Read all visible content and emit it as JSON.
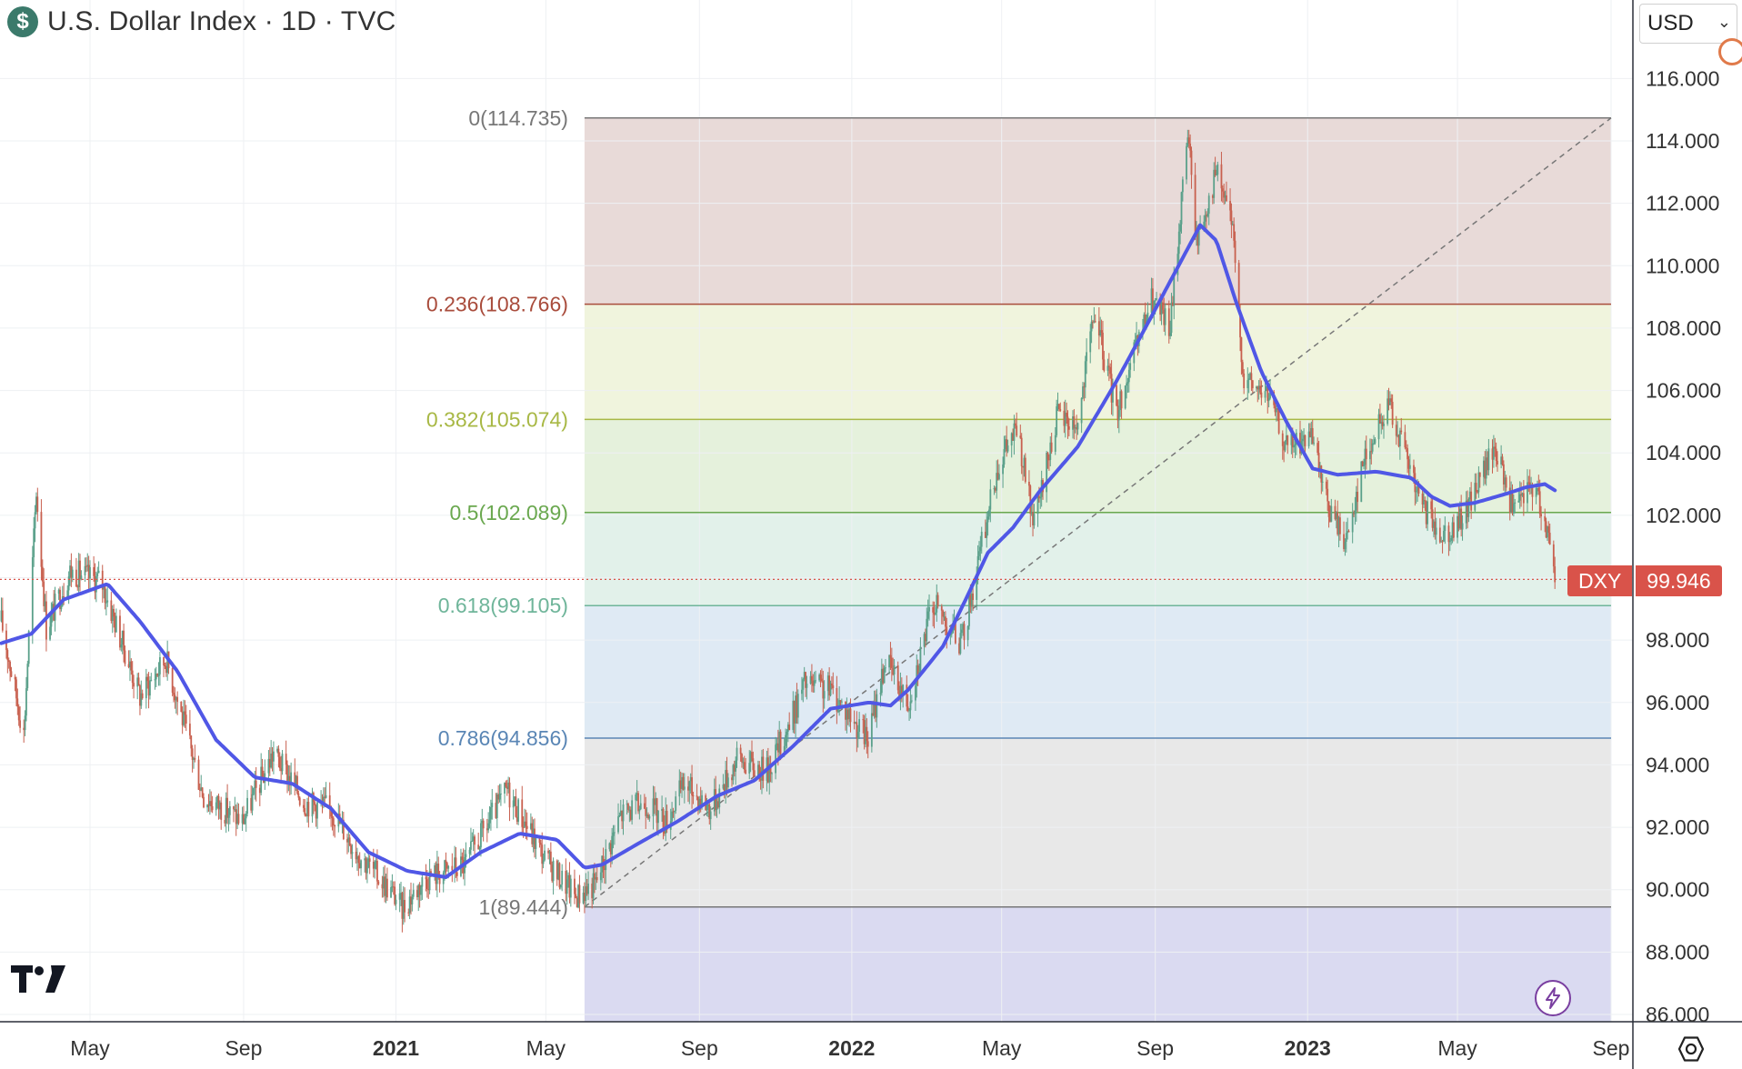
{
  "header": {
    "symbol_icon": "dollar-icon",
    "symbol_glyph": "$",
    "title": "U.S. Dollar Index · 1D · TVC"
  },
  "currency": {
    "label": "USD",
    "chevron": "⌄"
  },
  "price_badge": {
    "symbol": "DXY",
    "price": "99.946",
    "color": "#d9534a"
  },
  "colors": {
    "ma_line": "#5057e6",
    "candle_up": "#5aa08a",
    "candle_down": "#c8604f",
    "last_price_line": "#d9534a"
  },
  "chart_data": {
    "type": "candlestick",
    "title": "U.S. Dollar Index · 1D · TVC",
    "ylim": [
      85.5,
      118.2
    ],
    "y_ticks": [
      "86.000",
      "88.000",
      "90.000",
      "92.000",
      "94.000",
      "96.000",
      "98.000",
      "100.000",
      "102.000",
      "104.000",
      "106.000",
      "108.000",
      "110.000",
      "112.000",
      "114.000",
      "116.000"
    ],
    "y_tick_values": [
      86,
      88,
      90,
      92,
      94,
      96,
      98,
      100,
      102,
      104,
      106,
      108,
      110,
      112,
      114,
      116
    ],
    "x_ticks": [
      {
        "label": "May",
        "date": "2020-05-01",
        "bold": false
      },
      {
        "label": "Sep",
        "date": "2020-09-01",
        "bold": false
      },
      {
        "label": "2021",
        "date": "2021-01-01",
        "bold": true
      },
      {
        "label": "May",
        "date": "2021-05-01",
        "bold": false
      },
      {
        "label": "Sep",
        "date": "2021-09-01",
        "bold": false
      },
      {
        "label": "2022",
        "date": "2022-01-01",
        "bold": true
      },
      {
        "label": "May",
        "date": "2022-05-01",
        "bold": false
      },
      {
        "label": "Sep",
        "date": "2022-09-01",
        "bold": false
      },
      {
        "label": "2023",
        "date": "2023-01-01",
        "bold": true
      },
      {
        "label": "May",
        "date": "2023-05-01",
        "bold": false
      },
      {
        "label": "Sep",
        "date": "2023-09-01",
        "bold": false
      }
    ],
    "x_range": [
      "2020-02-20",
      "2023-09-15"
    ],
    "fibonacci": {
      "start_date": "2021-06-01",
      "end_date": "2023-09-01",
      "levels": [
        {
          "ratio": "0",
          "value": 114.735,
          "label": "0(114.735)",
          "color": "#777777",
          "fill": "#e6d6d4"
        },
        {
          "ratio": "0.236",
          "value": 108.766,
          "label": "0.236(108.766)",
          "color": "#a94c3c",
          "fill": "#eef3d9"
        },
        {
          "ratio": "0.382",
          "value": 105.074,
          "label": "0.382(105.074)",
          "color": "#a8b845",
          "fill": "#e2f0d8"
        },
        {
          "ratio": "0.5",
          "value": 102.089,
          "label": "0.5(102.089)",
          "color": "#6aa84f",
          "fill": "#dff0e8"
        },
        {
          "ratio": "0.618",
          "value": 99.105,
          "label": "0.618(99.105)",
          "color": "#6fb59a",
          "fill": "#dce8f3"
        },
        {
          "ratio": "0.786",
          "value": 94.856,
          "label": "0.786(94.856)",
          "color": "#5a86b5",
          "fill": "#e6e6e6"
        },
        {
          "ratio": "1",
          "value": 89.444,
          "label": "1(89.444)",
          "color": "#777777",
          "fill": "#d6d6ef"
        }
      ],
      "bottom_value": 85.5,
      "trend_line": {
        "from": {
          "date": "2021-06-01",
          "value": 89.444
        },
        "to": {
          "date": "2023-09-01",
          "value": 114.735
        }
      }
    },
    "last_price": 99.946,
    "price_anchors": [
      [
        "2020-02-20",
        98.6
      ],
      [
        "2020-03-09",
        95.0
      ],
      [
        "2020-03-19",
        102.8
      ],
      [
        "2020-03-27",
        98.4
      ],
      [
        "2020-04-15",
        100.2
      ],
      [
        "2020-05-10",
        99.9
      ],
      [
        "2020-06-10",
        96.2
      ],
      [
        "2020-07-01",
        97.4
      ],
      [
        "2020-07-31",
        93.0
      ],
      [
        "2020-08-31",
        92.2
      ],
      [
        "2020-09-25",
        94.4
      ],
      [
        "2020-10-20",
        92.8
      ],
      [
        "2020-11-10",
        92.6
      ],
      [
        "2020-12-01",
        91.2
      ],
      [
        "2020-12-31",
        89.8
      ],
      [
        "2021-01-06",
        89.4
      ],
      [
        "2021-01-25",
        90.4
      ],
      [
        "2021-02-25",
        90.8
      ],
      [
        "2021-03-31",
        93.2
      ],
      [
        "2021-04-30",
        91.0
      ],
      [
        "2021-05-25",
        89.8
      ],
      [
        "2021-06-10",
        90.2
      ],
      [
        "2021-06-30",
        92.4
      ],
      [
        "2021-07-20",
        92.8
      ],
      [
        "2021-08-05",
        92.2
      ],
      [
        "2021-08-20",
        93.4
      ],
      [
        "2021-09-10",
        92.6
      ],
      [
        "2021-10-01",
        94.2
      ],
      [
        "2021-10-25",
        93.8
      ],
      [
        "2021-11-12",
        95.3
      ],
      [
        "2021-11-24",
        96.6
      ],
      [
        "2021-12-15",
        96.4
      ],
      [
        "2022-01-14",
        94.8
      ],
      [
        "2022-01-28",
        97.4
      ],
      [
        "2022-02-15",
        96.0
      ],
      [
        "2022-03-07",
        99.2
      ],
      [
        "2022-03-30",
        97.9
      ],
      [
        "2022-04-28",
        103.6
      ],
      [
        "2022-05-13",
        104.8
      ],
      [
        "2022-05-27",
        101.6
      ],
      [
        "2022-06-14",
        105.2
      ],
      [
        "2022-07-01",
        104.9
      ],
      [
        "2022-07-14",
        108.5
      ],
      [
        "2022-08-01",
        105.3
      ],
      [
        "2022-08-29",
        108.9
      ],
      [
        "2022-09-13",
        108.0
      ],
      [
        "2022-09-27",
        114.4
      ],
      [
        "2022-10-04",
        110.8
      ],
      [
        "2022-10-20",
        113.0
      ],
      [
        "2022-11-01",
        111.5
      ],
      [
        "2022-11-11",
        106.3
      ],
      [
        "2022-11-30",
        105.9
      ],
      [
        "2022-12-15",
        104.2
      ],
      [
        "2023-01-03",
        104.5
      ],
      [
        "2023-01-18",
        102.2
      ],
      [
        "2023-02-01",
        101.2
      ],
      [
        "2023-02-15",
        103.8
      ],
      [
        "2023-03-08",
        105.6
      ],
      [
        "2023-03-31",
        102.5
      ],
      [
        "2023-04-14",
        101.5
      ],
      [
        "2023-05-01",
        101.6
      ],
      [
        "2023-05-17",
        103.0
      ],
      [
        "2023-05-31",
        104.2
      ],
      [
        "2023-06-15",
        102.1
      ],
      [
        "2023-06-30",
        103.0
      ],
      [
        "2023-07-10",
        102.0
      ],
      [
        "2023-07-18",
        99.9
      ]
    ],
    "ma_anchors": [
      [
        "2020-02-20",
        97.9
      ],
      [
        "2020-03-15",
        98.2
      ],
      [
        "2020-04-10",
        99.3
      ],
      [
        "2020-05-15",
        99.8
      ],
      [
        "2020-06-10",
        98.6
      ],
      [
        "2020-07-10",
        97.0
      ],
      [
        "2020-08-10",
        94.8
      ],
      [
        "2020-09-10",
        93.6
      ],
      [
        "2020-10-10",
        93.4
      ],
      [
        "2020-11-10",
        92.6
      ],
      [
        "2020-12-10",
        91.2
      ],
      [
        "2021-01-10",
        90.6
      ],
      [
        "2021-02-10",
        90.4
      ],
      [
        "2021-03-10",
        91.2
      ],
      [
        "2021-04-10",
        91.8
      ],
      [
        "2021-05-10",
        91.6
      ],
      [
        "2021-06-01",
        90.7
      ],
      [
        "2021-06-15",
        90.8
      ],
      [
        "2021-07-15",
        91.5
      ],
      [
        "2021-08-15",
        92.2
      ],
      [
        "2021-09-15",
        93.0
      ],
      [
        "2021-10-15",
        93.5
      ],
      [
        "2021-11-15",
        94.6
      ],
      [
        "2021-12-15",
        95.8
      ],
      [
        "2022-01-15",
        96.0
      ],
      [
        "2022-02-01",
        95.9
      ],
      [
        "2022-02-15",
        96.4
      ],
      [
        "2022-03-15",
        97.8
      ],
      [
        "2022-04-01",
        99.2
      ],
      [
        "2022-04-20",
        100.8
      ],
      [
        "2022-05-10",
        101.6
      ],
      [
        "2022-06-01",
        102.8
      ],
      [
        "2022-07-01",
        104.2
      ],
      [
        "2022-08-01",
        106.3
      ],
      [
        "2022-09-01",
        108.6
      ],
      [
        "2022-09-25",
        110.4
      ],
      [
        "2022-10-07",
        111.3
      ],
      [
        "2022-10-20",
        110.8
      ],
      [
        "2022-11-05",
        108.8
      ],
      [
        "2022-11-25",
        106.6
      ],
      [
        "2022-12-15",
        105.0
      ],
      [
        "2023-01-05",
        103.5
      ],
      [
        "2023-01-25",
        103.3
      ],
      [
        "2023-02-25",
        103.4
      ],
      [
        "2023-03-25",
        103.2
      ],
      [
        "2023-04-10",
        102.6
      ],
      [
        "2023-04-25",
        102.3
      ],
      [
        "2023-05-15",
        102.4
      ],
      [
        "2023-06-10",
        102.7
      ],
      [
        "2023-06-25",
        102.9
      ],
      [
        "2023-07-10",
        103.0
      ],
      [
        "2023-07-18",
        102.8
      ]
    ]
  }
}
